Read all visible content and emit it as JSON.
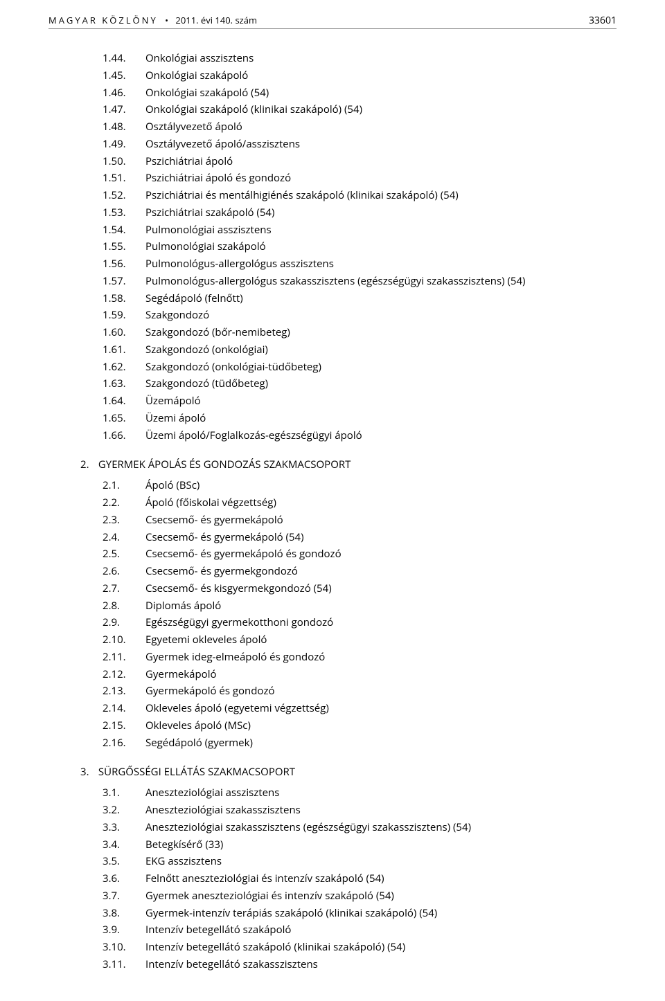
{
  "header": {
    "publication": "MAGYAR KÖZLÖNY",
    "bullet": "•",
    "issue": "2011. évi 140. szám",
    "page_number": "33601"
  },
  "sectionA": {
    "items": [
      {
        "num": "1.44.",
        "txt": "Onkológiai asszisztens"
      },
      {
        "num": "1.45.",
        "txt": "Onkológiai szakápoló"
      },
      {
        "num": "1.46.",
        "txt": "Onkológiai szakápoló (54)"
      },
      {
        "num": "1.47.",
        "txt": "Onkológiai szakápoló (klinikai szakápoló) (54)"
      },
      {
        "num": "1.48.",
        "txt": "Osztályvezető ápoló"
      },
      {
        "num": "1.49.",
        "txt": "Osztályvezető ápoló/asszisztens"
      },
      {
        "num": "1.50.",
        "txt": "Pszichiátriai ápoló"
      },
      {
        "num": "1.51.",
        "txt": "Pszichiátriai ápoló és gondozó"
      },
      {
        "num": "1.52.",
        "txt": "Pszichiátriai és mentálhigiénés szakápoló (klinikai szakápoló) (54)"
      },
      {
        "num": "1.53.",
        "txt": "Pszichiátriai szakápoló (54)"
      },
      {
        "num": "1.54.",
        "txt": "Pulmonológiai asszisztens"
      },
      {
        "num": "1.55.",
        "txt": "Pulmonológiai szakápoló"
      },
      {
        "num": "1.56.",
        "txt": "Pulmonológus-allergológus asszisztens"
      },
      {
        "num": "1.57.",
        "txt": "Pulmonológus-allergológus szakasszisztens (egészségügyi szakasszisztens) (54)"
      },
      {
        "num": "1.58.",
        "txt": "Segédápoló (felnőtt)"
      },
      {
        "num": "1.59.",
        "txt": "Szakgondozó"
      },
      {
        "num": "1.60.",
        "txt": "Szakgondozó (bőr-nemibeteg)"
      },
      {
        "num": "1.61.",
        "txt": "Szakgondozó (onkológiai)"
      },
      {
        "num": "1.62.",
        "txt": "Szakgondozó (onkológiai-tüdőbeteg)"
      },
      {
        "num": "1.63.",
        "txt": "Szakgondozó (tüdőbeteg)"
      },
      {
        "num": "1.64.",
        "txt": "Üzemápoló"
      },
      {
        "num": "1.65.",
        "txt": "Üzemi ápoló"
      },
      {
        "num": "1.66.",
        "txt": "Üzemi ápoló/Foglalkozás-egészségügyi ápoló"
      }
    ]
  },
  "section2": {
    "num": "2.",
    "title": "GYERMEK ÁPOLÁS ÉS GONDOZÁS SZAKMACSOPORT",
    "items": [
      {
        "num": "2.1.",
        "txt": "Ápoló (BSc)"
      },
      {
        "num": "2.2.",
        "txt": "Ápoló (főiskolai végzettség)"
      },
      {
        "num": "2.3.",
        "txt": "Csecsemő- és gyermekápoló"
      },
      {
        "num": "2.4.",
        "txt": "Csecsemő- és gyermekápoló (54)"
      },
      {
        "num": "2.5.",
        "txt": "Csecsemő- és gyermekápoló és gondozó"
      },
      {
        "num": "2.6.",
        "txt": "Csecsemő- és gyermekgondozó"
      },
      {
        "num": "2.7.",
        "txt": "Csecsemő- és kisgyermekgondozó (54)"
      },
      {
        "num": "2.8.",
        "txt": "Diplomás ápoló"
      },
      {
        "num": "2.9.",
        "txt": "Egészségügyi gyermekotthoni gondozó"
      },
      {
        "num": "2.10.",
        "txt": "Egyetemi okleveles ápoló"
      },
      {
        "num": "2.11.",
        "txt": "Gyermek ideg-elmeápoló és gondozó"
      },
      {
        "num": "2.12.",
        "txt": "Gyermekápoló"
      },
      {
        "num": "2.13.",
        "txt": "Gyermekápoló és gondozó"
      },
      {
        "num": "2.14.",
        "txt": "Okleveles ápoló (egyetemi végzettség)"
      },
      {
        "num": "2.15.",
        "txt": "Okleveles ápoló (MSc)"
      },
      {
        "num": "2.16.",
        "txt": "Segédápoló (gyermek)"
      }
    ]
  },
  "section3": {
    "num": "3.",
    "title": "SÜRGŐSSÉGI ELLÁTÁS SZAKMACSOPORT",
    "items": [
      {
        "num": "3.1.",
        "txt": "Aneszteziológiai asszisztens"
      },
      {
        "num": "3.2.",
        "txt": "Aneszteziológiai szakasszisztens"
      },
      {
        "num": "3.3.",
        "txt": "Aneszteziológiai szakasszisztens (egészségügyi szakasszisztens) (54)"
      },
      {
        "num": "3.4.",
        "txt": "Betegkísérő (33)"
      },
      {
        "num": "3.5.",
        "txt": "EKG asszisztens"
      },
      {
        "num": "3.6.",
        "txt": "Felnőtt aneszteziológiai és intenzív szakápoló (54)"
      },
      {
        "num": "3.7.",
        "txt": "Gyermek aneszteziológiai és intenzív szakápoló (54)"
      },
      {
        "num": "3.8.",
        "txt": "Gyermek-intenzív terápiás szakápoló (klinikai szakápoló) (54)"
      },
      {
        "num": "3.9.",
        "txt": "Intenzív betegellátó szakápoló"
      },
      {
        "num": "3.10.",
        "txt": "Intenzív betegellátó szakápoló (klinikai szakápoló) (54)"
      },
      {
        "num": "3.11.",
        "txt": "Intenzív betegellátó szakasszisztens"
      }
    ]
  }
}
